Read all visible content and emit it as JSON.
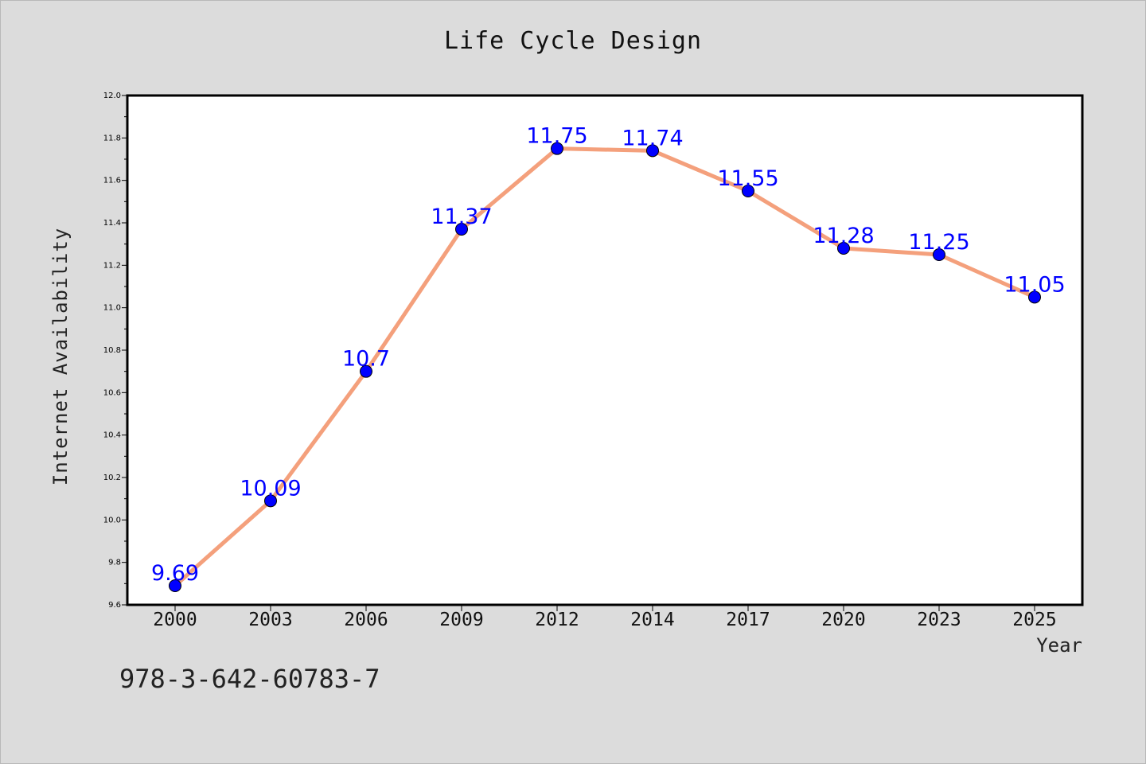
{
  "chart_data": {
    "type": "line",
    "title": "Life Cycle Design",
    "xlabel": "Year",
    "ylabel": "Internet Availability",
    "categories": [
      "2000",
      "2003",
      "2006",
      "2009",
      "2012",
      "2014",
      "2017",
      "2020",
      "2023",
      "2025"
    ],
    "series": [
      {
        "values": [
          9.69,
          10.09,
          10.7,
          11.37,
          11.75,
          11.74,
          11.55,
          11.28,
          11.25,
          11.05
        ]
      }
    ],
    "data_labels": [
      "9.69",
      "10.09",
      "10.7",
      "11.37",
      "11.75",
      "11.74",
      "11.55",
      "11.28",
      "11.25",
      "11.05"
    ],
    "ylim": [
      9.6,
      12.0
    ],
    "y_ticks": [
      "9.6",
      "9.8",
      "10.0",
      "10.2",
      "10.4",
      "10.6",
      "10.8",
      "11.0",
      "11.2",
      "11.4",
      "11.6",
      "11.8",
      "12.0"
    ],
    "grid": false,
    "colors": {
      "line": "#f4a07c",
      "marker": "#0000ff",
      "label": "#0000ff",
      "background": "#dcdcdc",
      "plot_background": "#ffffff"
    }
  },
  "annotation": {
    "isbn": "978-3-642-60783-7"
  }
}
